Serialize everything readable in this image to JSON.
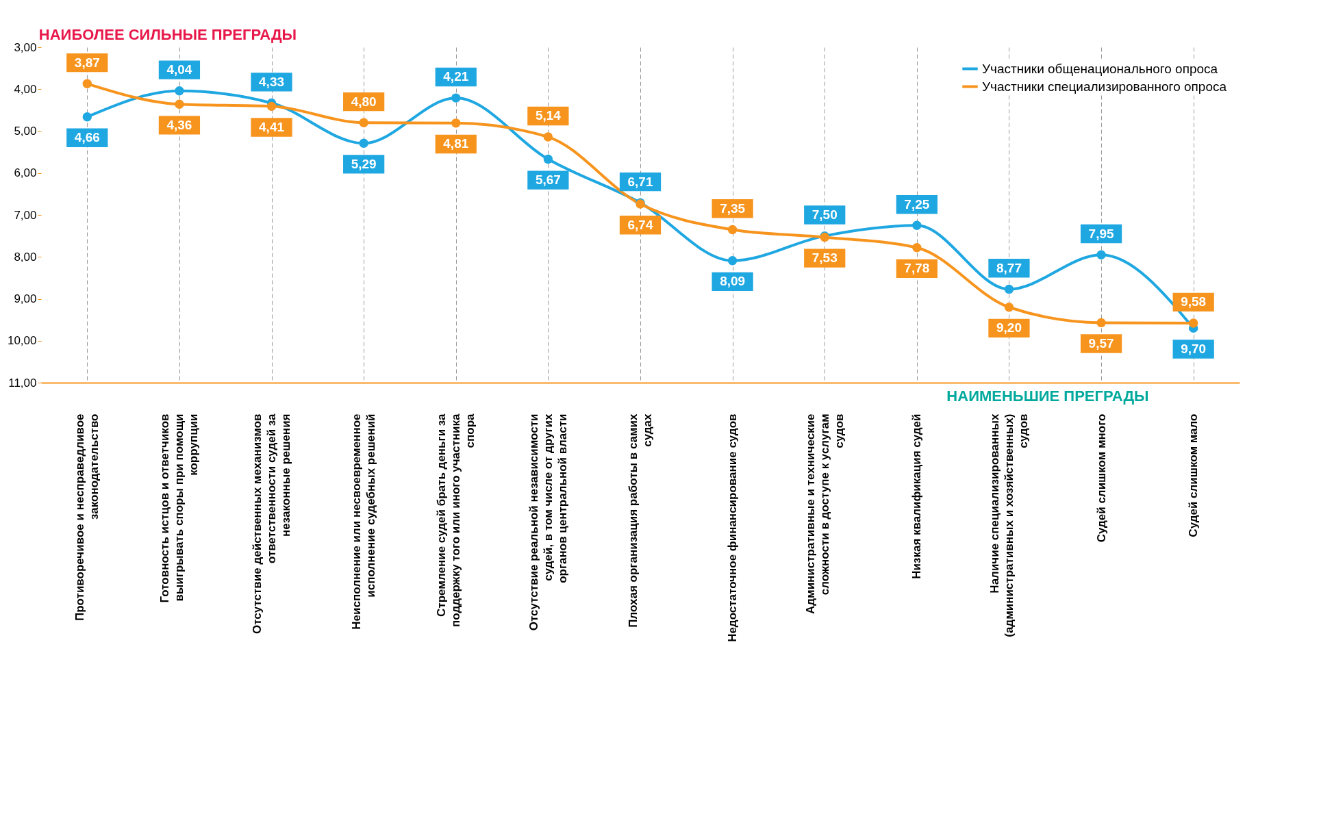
{
  "chart_data": {
    "type": "line",
    "categories": [
      "Противоречивое и несправедливое законодательство",
      "Готовность истцов и ответчиков выигрывать споры при помощи коррупции",
      "Отсутствие действенных механизмов ответственности судей за незаконные решения",
      "Неисполнение или несвоевременное исполнение судебных решений",
      "Стремление судей брать деньги за поддержку того или иного участника спора",
      "Отсутствие реальной независимости судей, в том числе от других органов центральной власти",
      "Плохая организация работы в самих судах",
      "Недостаточное финансирование судов",
      "Административные и технические сложности в доступе к услугам судов",
      "Низкая квалификация судей",
      "Наличие специализированных (административных и хозяйственных) судов",
      "Судей слишком много",
      "Судей слишком мало"
    ],
    "series": [
      {
        "name": "Участники общенационального опроса",
        "color": "#1ea7e1",
        "values": [
          4.66,
          4.04,
          4.33,
          5.29,
          4.21,
          5.67,
          6.71,
          8.09,
          7.5,
          7.25,
          8.77,
          7.95,
          9.7
        ],
        "value_labels": [
          "4,66",
          "4,04",
          "4,33",
          "5,29",
          "4,21",
          "5,67",
          "6,71",
          "8,09",
          "7,50",
          "7,25",
          "8,77",
          "7,95",
          "9,70"
        ]
      },
      {
        "name": "Участники специализированного опроса",
        "color": "#f7941d",
        "values": [
          3.87,
          4.36,
          4.41,
          4.8,
          4.81,
          5.14,
          6.74,
          7.35,
          7.53,
          7.78,
          9.2,
          9.57,
          9.58
        ],
        "value_labels": [
          "3,87",
          "4,36",
          "4,41",
          "4,80",
          "4,81",
          "5,14",
          "6,74",
          "7,35",
          "7,53",
          "7,78",
          "9,20",
          "9,57",
          "9,58"
        ]
      }
    ],
    "ylim": [
      11,
      3
    ],
    "yticks": [
      {
        "value": 3,
        "label": "3,00"
      },
      {
        "value": 4,
        "label": "4,00"
      },
      {
        "value": 5,
        "label": "5,00"
      },
      {
        "value": 6,
        "label": "6,00"
      },
      {
        "value": 7,
        "label": "7,00"
      },
      {
        "value": 8,
        "label": "8,00"
      },
      {
        "value": 9,
        "label": "9,00"
      },
      {
        "value": 10,
        "label": "10,00"
      },
      {
        "value": 11,
        "label": "11,00"
      }
    ],
    "annotations": [
      "НАИБОЛЕЕ СИЛЬНЫЕ ПРЕГРАДЫ",
      "НАИМЕНЬШИЕ ПРЕГРАДЫ"
    ],
    "data_labels": true,
    "grid": "x",
    "legend": "top right",
    "marker": "circle",
    "line_style": "solid"
  }
}
